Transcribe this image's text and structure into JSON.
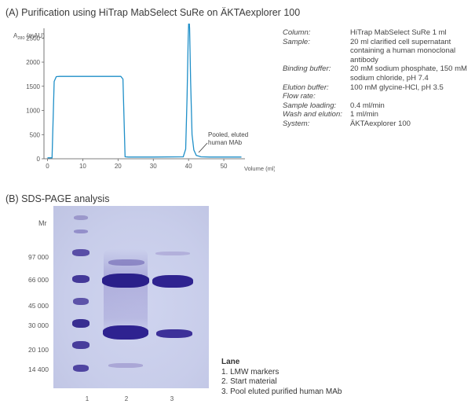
{
  "panel_a": {
    "title": "(A) Purification using HiTrap MabSelect SuRe on ÄKTAexplorer 100",
    "annotation_line1": "Pooled, eluted",
    "annotation_line2": "human MAb",
    "parameters": [
      {
        "label": "Column:",
        "value": "HiTrap MabSelect SuRe 1 ml"
      },
      {
        "label": "Sample:",
        "value": "20 ml clarified cell supernatant containing a human monoclonal antibody"
      },
      {
        "label": "Binding buffer:",
        "value": "20 mM sodium phosphate, 150 mM sodium chloride, pH 7.4"
      },
      {
        "label": "Elution buffer:",
        "value": "100 mM glycine-HCl, pH 3.5"
      },
      {
        "label": "Flow rate:",
        "value": ""
      },
      {
        "label": "Sample loading:",
        "value": "0.4 ml/min"
      },
      {
        "label": "Wash and elution:",
        "value": "1 ml/min"
      },
      {
        "label": "System:",
        "value": "ÄKTAexplorer 100"
      }
    ]
  },
  "panel_b": {
    "title": "(B) SDS-PAGE analysis",
    "mr_label": "Mr",
    "mw_markers": [
      "97 000",
      "66 000",
      "45 000",
      "30 000",
      "20 100",
      "14 400"
    ],
    "lane_numbers": [
      "1",
      "2",
      "3"
    ],
    "legend_title": "Lane",
    "legend_items": [
      "1. LMW markers",
      "2. Start material",
      "3. Pool eluted purified human MAb"
    ]
  },
  "chart_data": {
    "type": "line",
    "title": "",
    "xlabel": "Volume (ml)",
    "ylabel_main": "A",
    "ylabel_sub": "280",
    "ylabel_unit": " (mAU)",
    "xlim": [
      -1,
      56
    ],
    "ylim": [
      0,
      2700
    ],
    "xticks": [
      0,
      10,
      20,
      30,
      40,
      50
    ],
    "yticks": [
      0,
      500,
      1000,
      1500,
      2000,
      2500
    ],
    "grid": false,
    "series": [
      {
        "color": "#1f8fc8",
        "x": [
          0,
          1.3,
          1.9,
          2.5,
          3.5,
          20.8,
          21.4,
          22.0,
          23.0,
          30,
          38.5,
          39.2,
          39.6,
          39.9,
          40.1,
          40.3,
          40.6,
          41.0,
          41.5,
          42.2,
          43.5,
          46,
          55
        ],
        "y": [
          20,
          20,
          1600,
          1700,
          1705,
          1705,
          1650,
          40,
          35,
          35,
          40,
          200,
          1300,
          2500,
          2950,
          2700,
          1600,
          500,
          180,
          70,
          40,
          35,
          35
        ]
      }
    ]
  }
}
